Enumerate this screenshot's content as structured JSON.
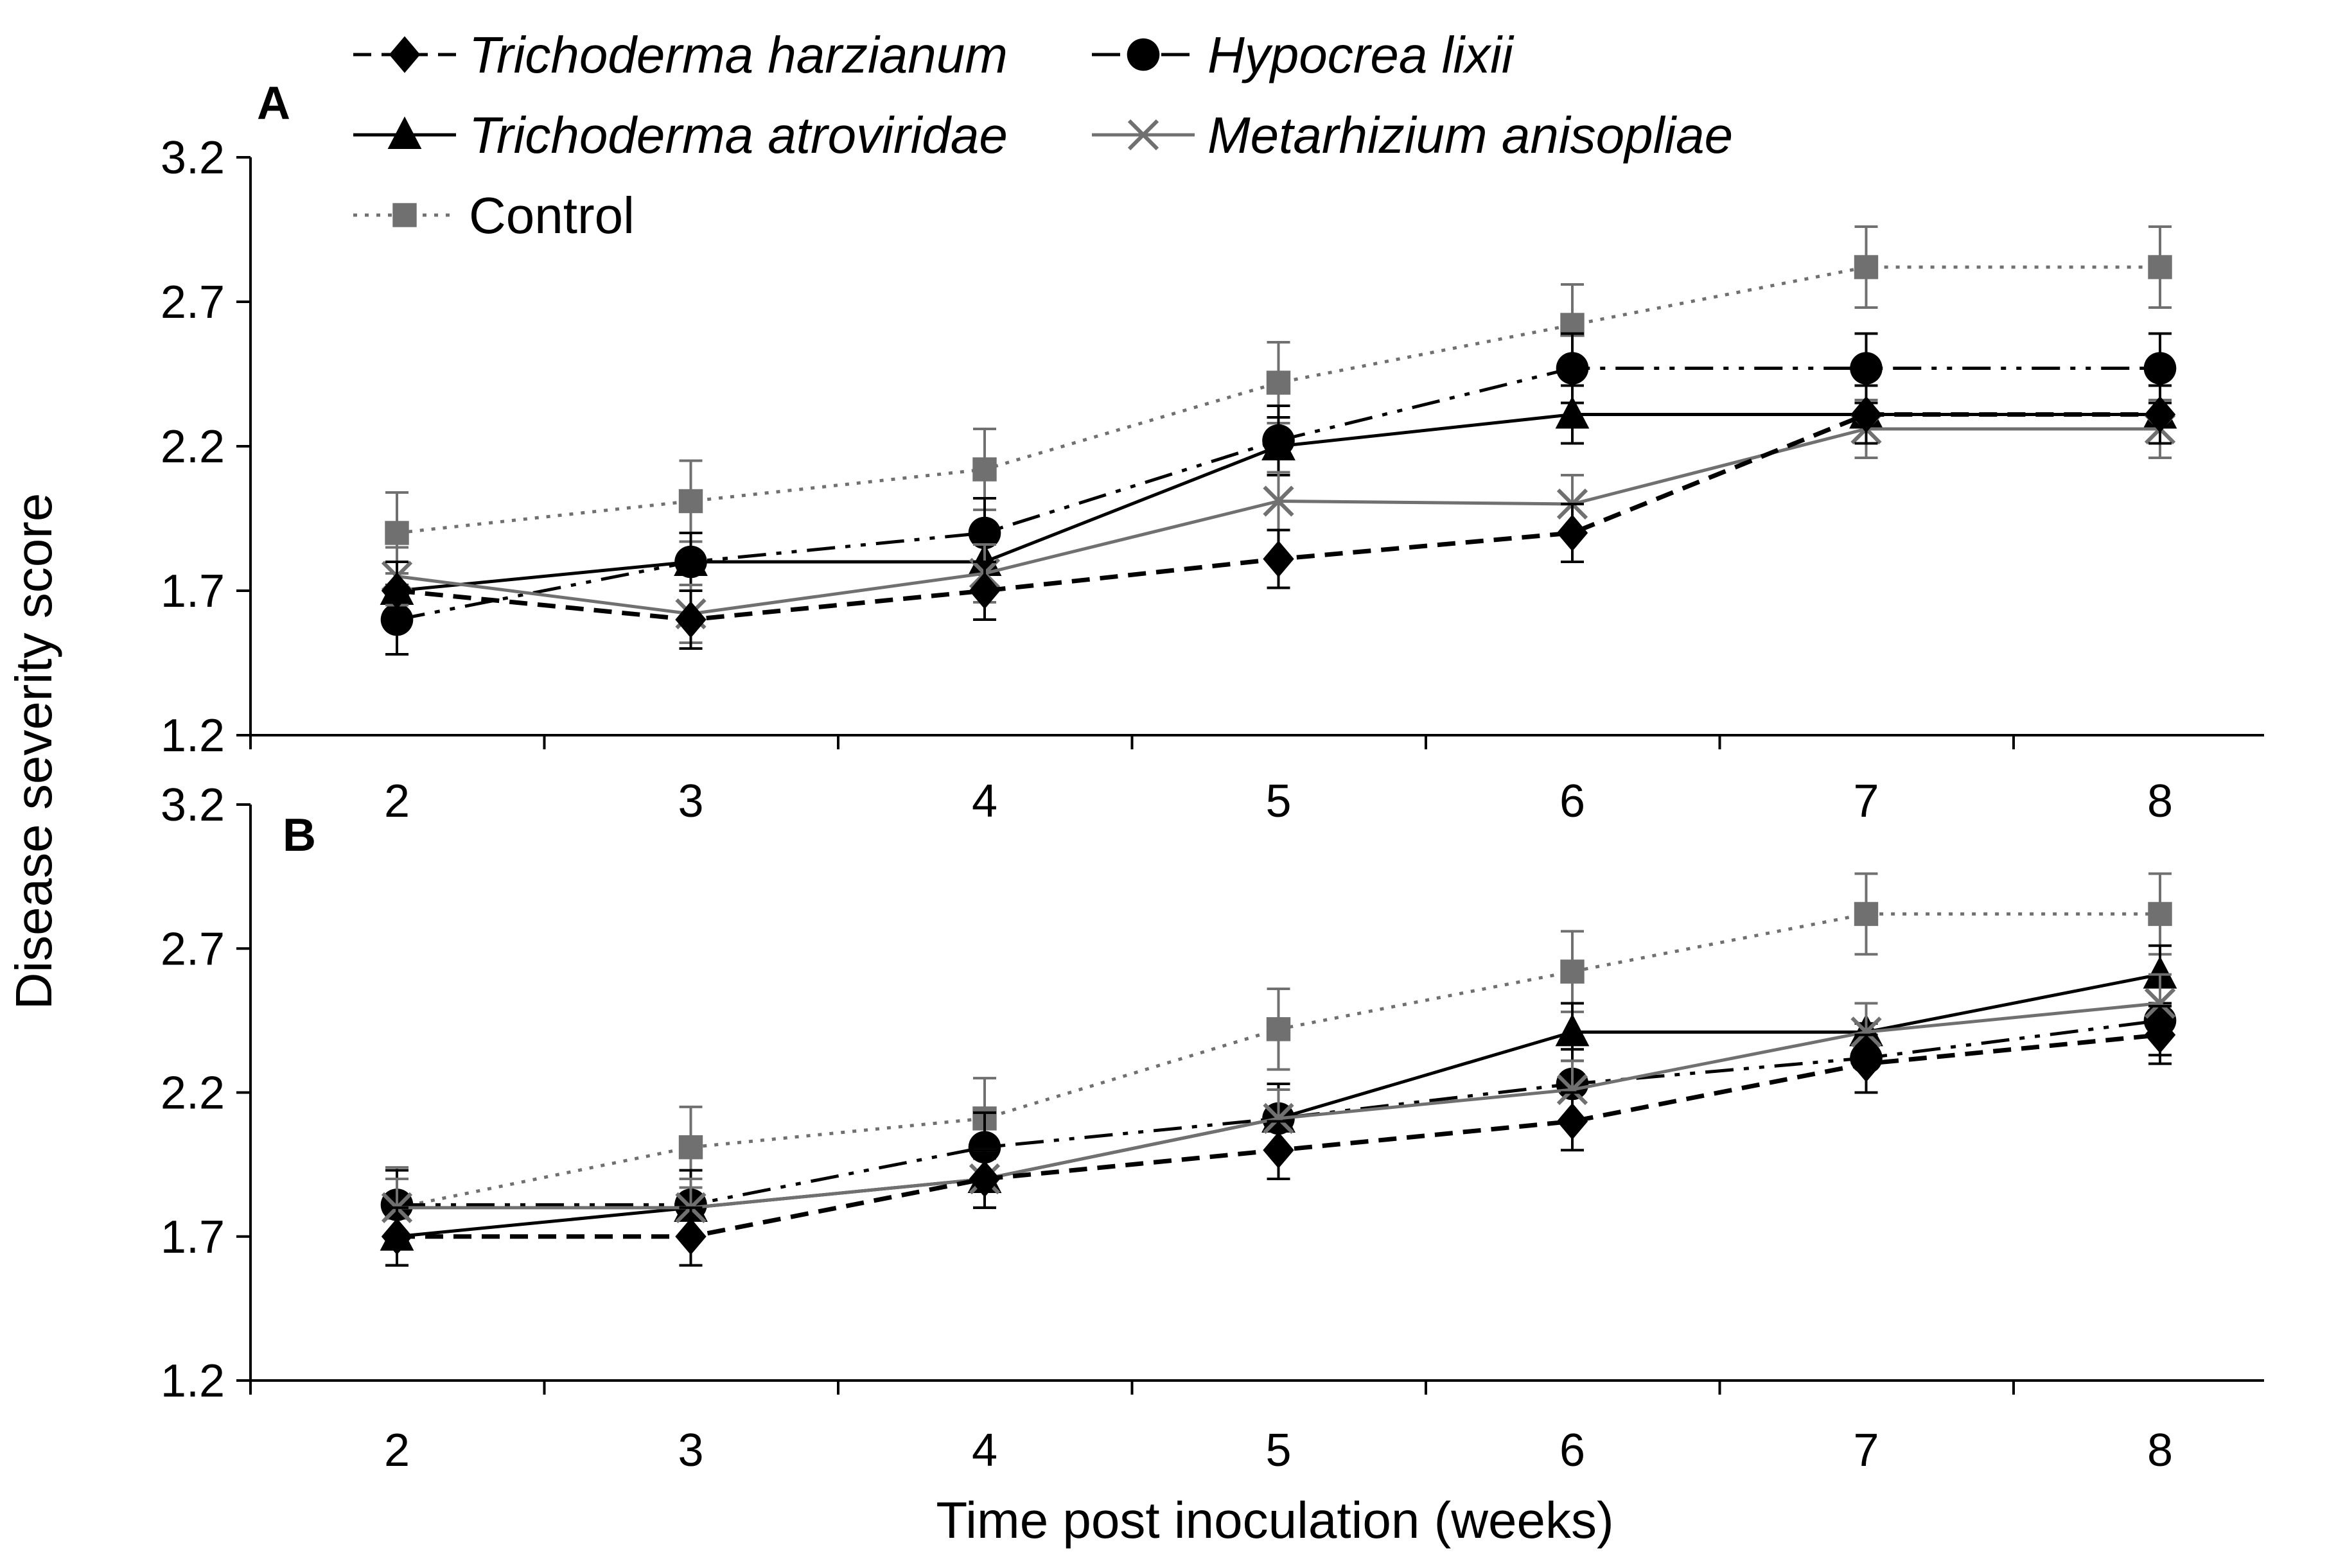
{
  "chart_data": {
    "type": "line",
    "title": "",
    "xlabel": "Time post inoculation (weeks)",
    "ylabel": "Disease severity score",
    "x": [
      2,
      3,
      4,
      5,
      6,
      7,
      8
    ],
    "ylim": [
      1.2,
      3.2
    ],
    "yticks": [
      "1.2",
      "1.7",
      "2.2",
      "2.7",
      "3.2"
    ],
    "xticks": [
      "2",
      "3",
      "4",
      "5",
      "6",
      "7",
      "8"
    ],
    "grid": false,
    "legend_position": "top",
    "legend": [
      {
        "key": "th",
        "label": "Trichoderma harzianum",
        "italic": true,
        "color": "#000000",
        "marker": "diamond",
        "dash": "dash"
      },
      {
        "key": "hl",
        "label": "Hypocrea lixii",
        "italic": true,
        "color": "#000000",
        "marker": "circle",
        "dash": "dashdotdot"
      },
      {
        "key": "ta",
        "label": "Trichoderma atroviridae",
        "italic": true,
        "color": "#000000",
        "marker": "triangle",
        "dash": "solid"
      },
      {
        "key": "ma",
        "label": "Metarhizium anisopliae",
        "italic": true,
        "color": "#707070",
        "marker": "x",
        "dash": "solid"
      },
      {
        "key": "ctrl",
        "label": "Control",
        "italic": false,
        "color": "#707070",
        "marker": "square",
        "dash": "dot"
      }
    ],
    "panels": [
      {
        "label": "A",
        "series": [
          {
            "key": "ctrl",
            "values": [
              1.9,
              2.01,
              2.12,
              2.42,
              2.62,
              2.82,
              2.82
            ],
            "errors": [
              0.14,
              0.14,
              0.14,
              0.14,
              0.14,
              0.14,
              0.14
            ]
          },
          {
            "key": "hl",
            "values": [
              1.6,
              1.8,
              1.9,
              2.22,
              2.47,
              2.47,
              2.47
            ],
            "errors": [
              0.12,
              0.1,
              0.12,
              0.12,
              0.12,
              0.12,
              0.12
            ]
          },
          {
            "key": "ta",
            "values": [
              1.7,
              1.8,
              1.8,
              2.2,
              2.31,
              2.31,
              2.31
            ],
            "errors": [
              0.1,
              0.1,
              0.1,
              0.1,
              0.1,
              0.1,
              0.1
            ]
          },
          {
            "key": "ma",
            "values": [
              1.75,
              1.62,
              1.76,
              2.01,
              2.0,
              2.26,
              2.26
            ],
            "errors": [
              0.1,
              0.1,
              0.1,
              0.1,
              0.1,
              0.1,
              0.1
            ]
          },
          {
            "key": "th",
            "values": [
              1.7,
              1.6,
              1.7,
              1.81,
              1.9,
              2.31,
              2.31
            ],
            "errors": [
              0.1,
              0.1,
              0.1,
              0.1,
              0.1,
              0.1,
              0.1
            ]
          }
        ]
      },
      {
        "label": "B",
        "series": [
          {
            "key": "ctrl",
            "values": [
              1.8,
              2.01,
              2.11,
              2.42,
              2.62,
              2.82,
              2.82
            ],
            "errors": [
              0.14,
              0.14,
              0.14,
              0.14,
              0.14,
              0.14,
              0.14
            ]
          },
          {
            "key": "hl",
            "values": [
              1.81,
              1.81,
              2.01,
              2.11,
              2.23,
              2.32,
              2.45
            ],
            "errors": [
              0.12,
              0.12,
              0.12,
              0.12,
              0.12,
              0.12,
              0.12
            ]
          },
          {
            "key": "ta",
            "values": [
              1.7,
              1.8,
              1.9,
              2.11,
              2.41,
              2.41,
              2.61
            ],
            "errors": [
              0.1,
              0.1,
              0.1,
              0.1,
              0.1,
              0.1,
              0.1
            ]
          },
          {
            "key": "ma",
            "values": [
              1.8,
              1.8,
              1.9,
              2.11,
              2.21,
              2.41,
              2.51
            ],
            "errors": [
              0.1,
              0.1,
              0.1,
              0.1,
              0.1,
              0.1,
              0.1
            ]
          },
          {
            "key": "th",
            "values": [
              1.7,
              1.7,
              1.9,
              2.0,
              2.1,
              2.3,
              2.4
            ],
            "errors": [
              0.1,
              0.1,
              0.1,
              0.1,
              0.1,
              0.1,
              0.1
            ]
          }
        ]
      }
    ]
  }
}
